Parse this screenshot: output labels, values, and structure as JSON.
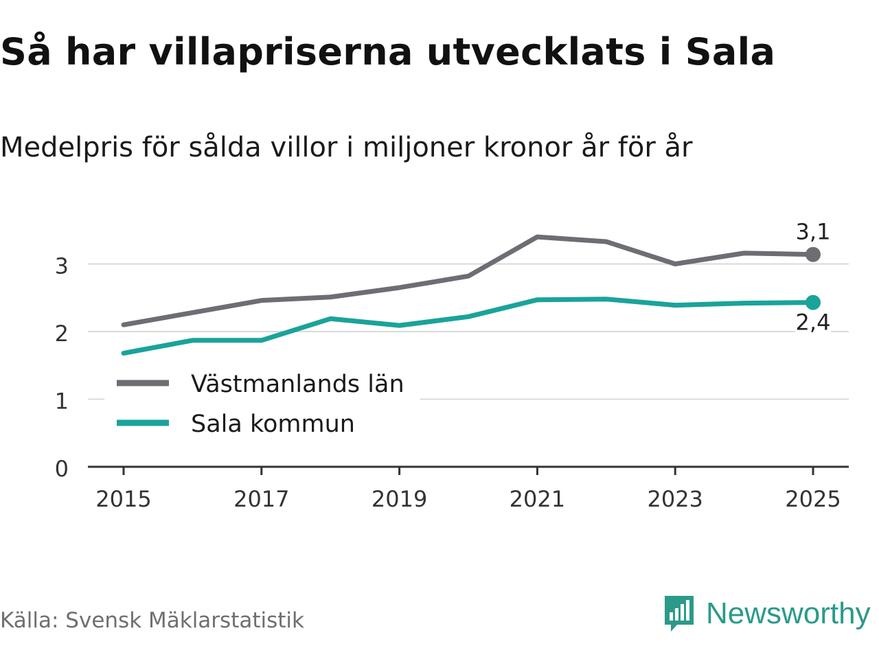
{
  "title": "Så har villapriserna utvecklats i Sala",
  "subtitle": "Medelpris för sålda villor i miljoner kronor år för år",
  "source": "Källa: Svensk Mäklarstatistik",
  "brand": {
    "name": "Newsworthy",
    "icon": "newsworthy-logo-icon",
    "color": "#2b9a8a"
  },
  "chart_data": {
    "type": "line",
    "x": [
      2015,
      2016,
      2017,
      2018,
      2019,
      2020,
      2021,
      2022,
      2023,
      2024,
      2025
    ],
    "x_ticks": [
      "2015",
      "2017",
      "2019",
      "2021",
      "2023",
      "2025"
    ],
    "y_ticks": [
      "0",
      "1",
      "2",
      "3"
    ],
    "ylim": [
      0,
      3.5
    ],
    "grid": true,
    "legend_position": "left",
    "series": [
      {
        "name": "Västmanlands län",
        "color": "#6e6d74",
        "values": [
          2.1,
          2.28,
          2.46,
          2.51,
          2.65,
          2.82,
          3.4,
          3.33,
          3.0,
          3.16,
          3.14
        ],
        "end_label": "3,1",
        "end_label_position": "above"
      },
      {
        "name": "Sala kommun",
        "color": "#1aa39a",
        "values": [
          1.68,
          1.87,
          1.87,
          2.19,
          2.09,
          2.22,
          2.47,
          2.48,
          2.39,
          2.42,
          2.43
        ],
        "end_label": "2,4",
        "end_label_position": "below"
      }
    ]
  }
}
